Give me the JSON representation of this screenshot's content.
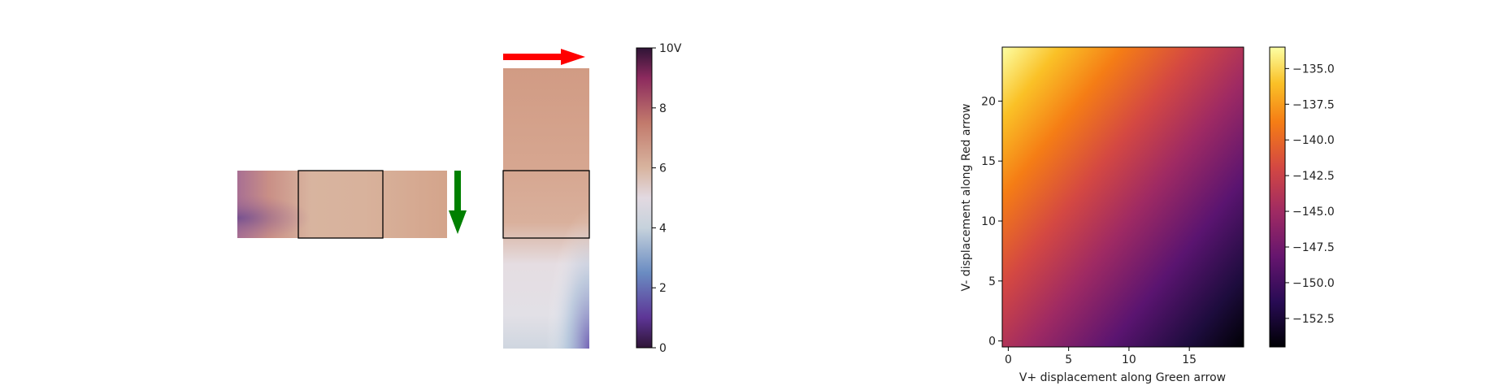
{
  "chart_data": [
    {
      "type": "heatmap",
      "title": "",
      "description_note": "",
      "colormap": "twilight",
      "colorbar": {
        "min": 0,
        "max": 10,
        "ticks": [
          "0",
          "2",
          "4",
          "6",
          "8",
          "10V"
        ]
      },
      "arrows": [
        {
          "name": "green-arrow",
          "color": "#008000",
          "direction": "down"
        },
        {
          "name": "red-arrow",
          "color": "#ff0000",
          "direction": "right"
        }
      ]
    },
    {
      "type": "heatmap",
      "title": "",
      "colormap": "inferno",
      "xlabel": "V+ displacement along Green arrow",
      "ylabel": "V- displacement along Red arrow",
      "x_ticks": [
        "0",
        "5",
        "10",
        "15"
      ],
      "y_ticks": [
        "0",
        "5",
        "10",
        "15",
        "20"
      ],
      "xlim": [
        -0.5,
        19.5
      ],
      "ylim": [
        -0.5,
        24.5
      ],
      "value_range": [
        -154.5,
        -133.5
      ],
      "colorbar": {
        "min": -154.5,
        "max": -133.5,
        "ticks": [
          "−135.0",
          "−137.5",
          "−140.0",
          "−142.5",
          "−145.0",
          "−147.5",
          "−150.0",
          "−152.5"
        ],
        "tick_values": [
          -135.0,
          -137.5,
          -140.0,
          -142.5,
          -145.0,
          -147.5,
          -150.0,
          -152.5
        ]
      },
      "trend": {
        "value_at_x0_y24": -133.5,
        "value_at_x19_y0": -154.5
      }
    }
  ]
}
